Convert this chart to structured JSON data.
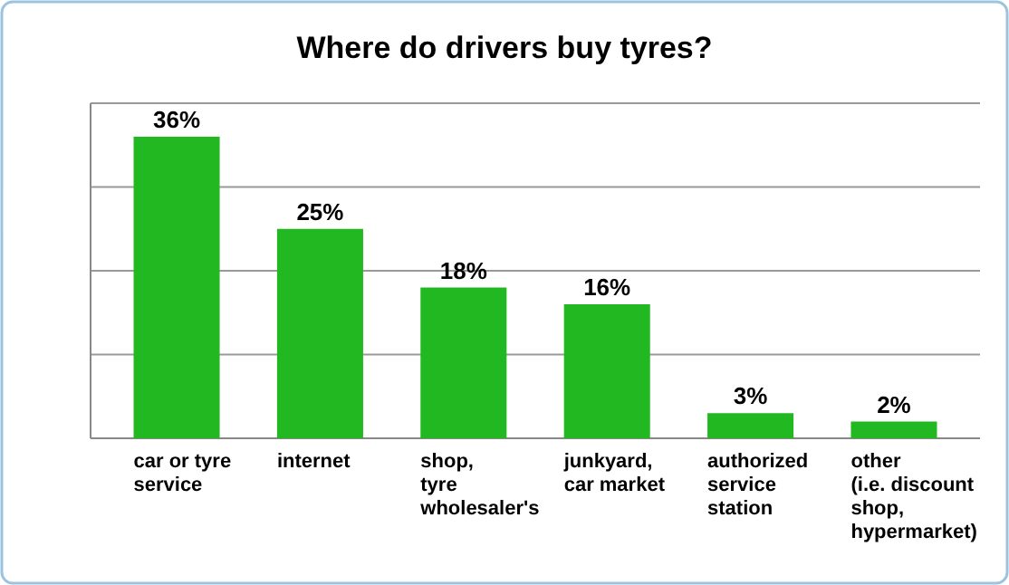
{
  "chart_data": {
    "type": "bar",
    "title": "Where do drivers buy tyres?",
    "categories": [
      "car or tyre\nservice",
      "internet",
      "shop,\ntyre\nwholesaler's",
      "junkyard,\ncar market",
      "authorized\nservice\nstation",
      "other\n(i.e. discount\nshop,\nhypermarket)"
    ],
    "values": [
      36,
      25,
      18,
      16,
      3,
      2
    ],
    "value_labels": [
      "36%",
      "25%",
      "18%",
      "16%",
      "3%",
      "2%"
    ],
    "color": "#22b822",
    "ylim": [
      0,
      40
    ],
    "yticks": [
      {
        "value": 0,
        "label": null
      },
      {
        "value": 10,
        "label": null
      },
      {
        "value": 20,
        "label": null
      },
      {
        "value": 30,
        "label": null
      },
      {
        "value": 40,
        "label": null
      }
    ],
    "tick_labels": "x",
    "grid": "y"
  }
}
